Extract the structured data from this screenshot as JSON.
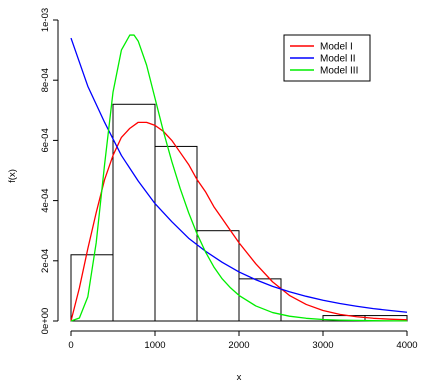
{
  "chart_data": {
    "type": "histogram-with-density-curves",
    "xlabel": "x",
    "ylabel": "f(x)",
    "xlim": [
      0,
      4000
    ],
    "ylim": [
      0,
      0.001
    ],
    "x_ticks": [
      {
        "value": 0,
        "label": "0"
      },
      {
        "value": 1000,
        "label": "1000"
      },
      {
        "value": 2000,
        "label": "2000"
      },
      {
        "value": 3000,
        "label": "3000"
      },
      {
        "value": 4000,
        "label": "4000"
      }
    ],
    "y_ticks": [
      {
        "value": 0,
        "label": "0e+00"
      },
      {
        "value": 0.0002,
        "label": "2e-04"
      },
      {
        "value": 0.0004,
        "label": "4e-04"
      },
      {
        "value": 0.0006,
        "label": "6e-04"
      },
      {
        "value": 0.0008,
        "label": "8e-04"
      },
      {
        "value": 0.001,
        "label": "1e-03"
      }
    ],
    "histogram": {
      "bin_edges": [
        0,
        500,
        1000,
        1500,
        2000,
        2500,
        3000,
        3500,
        4000
      ],
      "densities": [
        0.00022,
        0.00072,
        0.00058,
        0.0003,
        0.00014,
        0.0,
        1.8e-05,
        1.8e-05
      ]
    },
    "series": [
      {
        "name": "Model I",
        "color": "#ff0000",
        "x": [
          0,
          100,
          200,
          300,
          400,
          500,
          600,
          700,
          800,
          900,
          1000,
          1100,
          1200,
          1300,
          1400,
          1500,
          1600,
          1700,
          1800,
          1900,
          2000,
          2200,
          2400,
          2600,
          2800,
          3000,
          3200,
          3400,
          3600,
          3800,
          4000
        ],
        "y": [
          0,
          0.00011,
          0.00024,
          0.00036,
          0.00047,
          0.00055,
          0.00061,
          0.00064,
          0.00066,
          0.00066,
          0.00065,
          0.00063,
          0.0006,
          0.00056,
          0.00052,
          0.00047,
          0.00043,
          0.00038,
          0.00034,
          0.0003,
          0.00026,
          0.00019,
          0.00013,
          8.5e-05,
          5.5e-05,
          3.5e-05,
          2.2e-05,
          1.4e-05,
          9e-06,
          6e-06,
          4e-06
        ]
      },
      {
        "name": "Model II",
        "color": "#0000ff",
        "x": [
          0,
          200,
          400,
          600,
          800,
          1000,
          1200,
          1400,
          1600,
          1800,
          2000,
          2200,
          2400,
          2600,
          2800,
          3000,
          3200,
          3400,
          3600,
          3800,
          4000
        ],
        "y": [
          0.00094,
          0.00078,
          0.00066,
          0.00055,
          0.000465,
          0.00039,
          0.00033,
          0.000275,
          0.000232,
          0.000195,
          0.000163,
          0.000137,
          0.000115,
          9.7e-05,
          8.2e-05,
          6.9e-05,
          5.8e-05,
          4.9e-05,
          4.1e-05,
          3.5e-05,
          2.9e-05
        ]
      },
      {
        "name": "Model III",
        "color": "#00ee00",
        "x": [
          0,
          100,
          200,
          300,
          400,
          500,
          600,
          700,
          750,
          800,
          900,
          1000,
          1100,
          1200,
          1300,
          1400,
          1500,
          1600,
          1700,
          1800,
          1900,
          2000,
          2200,
          2400,
          2600,
          2800,
          3000,
          3200,
          3600,
          4000
        ],
        "y": [
          0,
          1e-05,
          8e-05,
          0.00026,
          0.00052,
          0.00076,
          0.0009,
          0.00095,
          0.00095,
          0.00093,
          0.00085,
          0.00074,
          0.00063,
          0.00053,
          0.00044,
          0.00036,
          0.00029,
          0.00023,
          0.00018,
          0.00014,
          0.00011,
          8.5e-05,
          5e-05,
          2.8e-05,
          1.6e-05,
          9e-06,
          5e-06,
          3e-06,
          1e-06,
          3e-07
        ]
      }
    ],
    "legend": {
      "position": "top-right",
      "entries": [
        {
          "label": "Model I",
          "color": "#ff0000"
        },
        {
          "label": "Model II",
          "color": "#0000ff"
        },
        {
          "label": "Model III",
          "color": "#00ee00"
        }
      ]
    }
  }
}
